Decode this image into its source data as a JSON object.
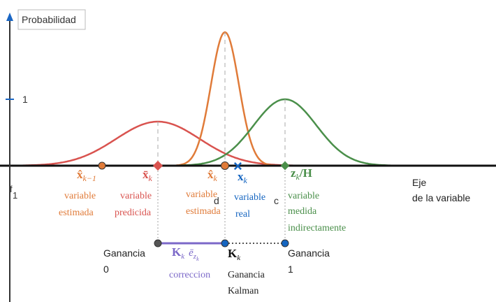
{
  "y_axis": {
    "label": "Probabilidad",
    "tick_label": "1"
  },
  "x_axis": {
    "label_line1": "Eje",
    "label_line2": "de la variable",
    "origin_label_top": "f",
    "origin_label_bottom": "1"
  },
  "colors": {
    "red": "#d9534f",
    "orange": "#e07b39",
    "green": "#4a8f4a",
    "blue": "#1565c0",
    "purple": "#7b68c8",
    "axis": "#111111",
    "y_axis": "#333333",
    "arrow": "#1a66c4"
  },
  "points": {
    "estimated_prev": {
      "symbol": "x̂",
      "sub": "k−1",
      "line1": "variable",
      "line2": "estimada"
    },
    "predicted": {
      "symbol": "x̄",
      "sub": "k",
      "line1": "variable",
      "line2": "predicida"
    },
    "estimated": {
      "symbol": "x̂",
      "sub": "k",
      "line1": "variable",
      "line2": "estimada"
    },
    "real": {
      "symbol": "x",
      "sub": "k",
      "line1": "variable",
      "line2": "real",
      "marker": "×"
    },
    "measured": {
      "symbol": "z",
      "sub": "k",
      "suffix": "/H",
      "line1": "variable",
      "line2": "medida",
      "line3": "indirectamente"
    },
    "label_d": "d",
    "label_c": "c"
  },
  "gain": {
    "left_line1": "Ganancia",
    "left_line2": "0",
    "right_line1": "Ganancia",
    "right_line2": "1",
    "correction_symbol": "K",
    "correction_sub": "k",
    "correction_e": "ē",
    "correction_e_sub": "z",
    "correction_e_subsub": "k",
    "correction_label": "correccion",
    "kalman_symbol": "K",
    "kalman_sub": "k",
    "kalman_line1": "Ganancia",
    "kalman_line2": "Kalman"
  }
}
